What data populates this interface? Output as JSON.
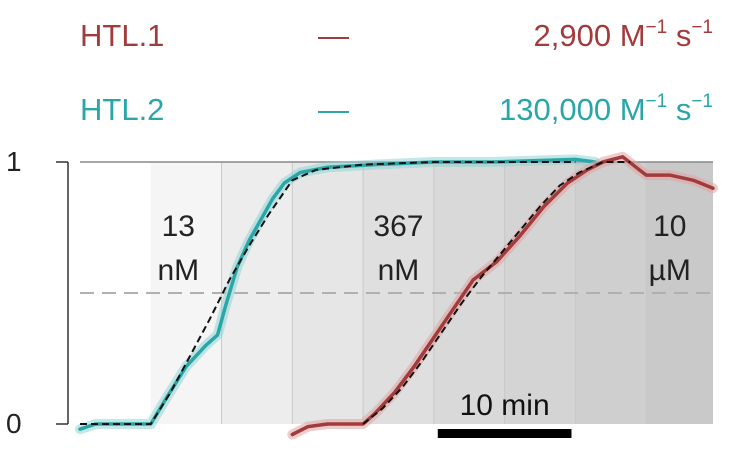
{
  "chart_data": {
    "type": "line",
    "title": "",
    "xlabel": "",
    "ylabel": "",
    "x_unit": "min",
    "xlim": [
      0,
      16.1
    ],
    "ylim": [
      0,
      1
    ],
    "y_ticks": [
      {
        "value": 0,
        "label": "0"
      },
      {
        "value": 1,
        "label": "1"
      }
    ],
    "reference_lines": [
      {
        "y": 0.5,
        "style": "dashed"
      },
      {
        "y": 1,
        "style": "solid"
      }
    ],
    "grid": false,
    "legend": {
      "position": "top",
      "entries": [
        {
          "name": "HTL.1",
          "dash": "—",
          "value_text": "2,900 M",
          "exp1": "−1",
          "mid": " s",
          "exp2": "−1"
        },
        {
          "name": "HTL.2",
          "dash": "—",
          "value_text": "130,000 M",
          "exp1": "−1",
          "mid": " s",
          "exp2": "−1"
        }
      ]
    },
    "concentration_bands": [
      {
        "x0": 1.8,
        "x1": 3.6,
        "shade": "#f5f5f5"
      },
      {
        "x0": 3.6,
        "x1": 5.4,
        "shade": "#ededed"
      },
      {
        "x0": 5.4,
        "x1": 7.2,
        "shade": "#e6e6e6"
      },
      {
        "x0": 7.2,
        "x1": 9.0,
        "shade": "#dfdfdf"
      },
      {
        "x0": 9.0,
        "x1": 10.8,
        "shade": "#d9d9d9"
      },
      {
        "x0": 10.8,
        "x1": 12.6,
        "shade": "#d4d4d4"
      },
      {
        "x0": 12.6,
        "x1": 14.4,
        "shade": "#cfcfcf"
      },
      {
        "x0": 14.4,
        "x1": 16.1,
        "shade": "#c9c9c9"
      }
    ],
    "concentration_labels": [
      {
        "x": 2.5,
        "line1": "13",
        "line2": "nM"
      },
      {
        "x": 8.1,
        "line1": "367",
        "line2": "nM"
      },
      {
        "x": 15.0,
        "line1": "10",
        "line2": "µM"
      }
    ],
    "scale_bar": {
      "label": "10 min",
      "x0": 9.1,
      "x1": 12.5
    },
    "colors": {
      "HTL.1": "#a23b3b",
      "HTL.2": "#2aa6a8",
      "fit": "#111111"
    },
    "series": [
      {
        "name": "HTL.2",
        "x": [
          0,
          0.4,
          1.0,
          1.8,
          2.2,
          2.7,
          3.2,
          3.5,
          3.7,
          4.0,
          4.3,
          4.6,
          4.9,
          5.2,
          5.6,
          6.3,
          7.5,
          9.0,
          10.5,
          12.6,
          13.1
        ],
        "y": [
          -0.02,
          0.0,
          0.0,
          0.0,
          0.1,
          0.22,
          0.3,
          0.34,
          0.45,
          0.6,
          0.7,
          0.78,
          0.86,
          0.92,
          0.96,
          0.98,
          0.99,
          1.0,
          1.0,
          1.01,
          1.0
        ]
      },
      {
        "name": "HTL.1",
        "x": [
          5.4,
          5.8,
          6.3,
          7.2,
          7.5,
          8.0,
          8.5,
          9.0,
          9.5,
          10.0,
          10.6,
          11.2,
          11.8,
          12.4,
          12.9,
          13.3,
          13.8,
          14.4,
          15.0,
          15.6,
          16.1
        ],
        "y": [
          -0.04,
          -0.01,
          0.0,
          0.0,
          0.04,
          0.12,
          0.22,
          0.33,
          0.44,
          0.55,
          0.62,
          0.72,
          0.83,
          0.92,
          0.97,
          1.0,
          1.02,
          0.95,
          0.95,
          0.93,
          0.9
        ]
      },
      {
        "name": "HTL.2 fit",
        "x": [
          0,
          1.8,
          2.3,
          2.8,
          3.3,
          3.8,
          4.3,
          4.8,
          5.4,
          6.0,
          7.2,
          9.0,
          12.6
        ],
        "y": [
          0.0,
          0.0,
          0.12,
          0.26,
          0.4,
          0.55,
          0.68,
          0.8,
          0.93,
          0.97,
          0.99,
          1.0,
          1.0
        ]
      },
      {
        "name": "HTL.1 fit",
        "x": [
          7.2,
          7.7,
          8.2,
          8.7,
          9.2,
          9.7,
          10.2,
          10.7,
          11.2,
          11.7,
          12.2,
          12.7,
          13.3,
          14.0
        ],
        "y": [
          0.0,
          0.06,
          0.14,
          0.24,
          0.35,
          0.46,
          0.56,
          0.65,
          0.74,
          0.83,
          0.91,
          0.96,
          1.0,
          1.0
        ]
      }
    ]
  }
}
